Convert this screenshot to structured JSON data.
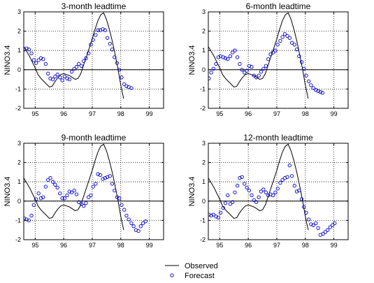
{
  "colors": {
    "observed": "#000000",
    "forecast": "#0000cc",
    "grid": "#000000",
    "zero": "#000000"
  },
  "legend": {
    "observed_label": "Observed",
    "forecast_label": "Forecast",
    "position": "bottom-center"
  },
  "chart_data": [
    {
      "type": "line",
      "title": "3-month leadtime",
      "xlabel": "",
      "ylabel": "NINO3.4",
      "xlim": [
        94.6,
        99.5
      ],
      "ylim": [
        -2,
        3
      ],
      "xticks": [
        95,
        96,
        97,
        98,
        99
      ],
      "yticks": [
        -2,
        -1,
        0,
        1,
        2,
        3
      ],
      "grid": "dotted",
      "series": [
        {
          "name": "Observed",
          "style": "line",
          "x": [
            94.6,
            94.7,
            94.8,
            94.9,
            95.0,
            95.1,
            95.2,
            95.3,
            95.4,
            95.5,
            95.6,
            95.7,
            95.8,
            95.9,
            96.0,
            96.1,
            96.2,
            96.3,
            96.4,
            96.5,
            96.6,
            96.7,
            96.8,
            96.9,
            97.0,
            97.1,
            97.2,
            97.3,
            97.4,
            97.5,
            97.6,
            97.7,
            97.8,
            97.9,
            98.0,
            98.1
          ],
          "y": [
            1.2,
            0.95,
            0.7,
            0.4,
            0.1,
            -0.25,
            -0.45,
            -0.6,
            -0.75,
            -0.9,
            -0.85,
            -0.6,
            -0.4,
            -0.25,
            -0.2,
            -0.25,
            -0.3,
            -0.4,
            -0.5,
            -0.45,
            -0.2,
            0.25,
            0.7,
            1.15,
            1.6,
            2.1,
            2.55,
            2.85,
            2.95,
            2.6,
            2.1,
            1.5,
            0.8,
            0.05,
            -0.8,
            -1.5
          ]
        },
        {
          "name": "Forecast",
          "style": "markers",
          "x": [
            94.62,
            94.7,
            94.78,
            94.87,
            94.95,
            95.03,
            95.12,
            95.2,
            95.28,
            95.37,
            95.45,
            95.53,
            95.62,
            95.7,
            95.78,
            95.87,
            95.95,
            96.03,
            96.12,
            96.2,
            96.28,
            96.37,
            96.45,
            96.53,
            96.62,
            96.7,
            96.78,
            96.87,
            96.95,
            97.03,
            97.12,
            97.2,
            97.28,
            97.37,
            97.45,
            97.53,
            97.62,
            97.7,
            97.78,
            97.87,
            97.95,
            98.03,
            98.12,
            98.2,
            98.28,
            98.37
          ],
          "y": [
            1.05,
            1.1,
            1.05,
            0.85,
            0.5,
            0.35,
            0.5,
            0.6,
            0.55,
            0.3,
            -0.2,
            -0.45,
            -0.5,
            -0.35,
            -0.25,
            -0.4,
            -0.55,
            -0.35,
            -0.45,
            -0.5,
            -0.1,
            0.05,
            0.15,
            0.3,
            0.2,
            0.45,
            0.6,
            0.85,
            1.3,
            1.55,
            1.8,
            2.05,
            2.05,
            2.1,
            2.05,
            1.65,
            1.35,
            1.05,
            0.65,
            0.35,
            0.0,
            -0.4,
            -0.75,
            -0.85,
            -0.9,
            -0.95
          ]
        }
      ]
    },
    {
      "type": "line",
      "title": "6-month leadtime",
      "xlabel": "",
      "ylabel": "NINO3.4",
      "xlim": [
        94.6,
        99.5
      ],
      "ylim": [
        -2,
        3
      ],
      "xticks": [
        95,
        96,
        97,
        98,
        99
      ],
      "yticks": [
        -2,
        -1,
        0,
        1,
        2,
        3
      ],
      "grid": "dotted",
      "series": [
        {
          "name": "Observed",
          "style": "line",
          "x": [
            94.6,
            94.7,
            94.8,
            94.9,
            95.0,
            95.1,
            95.2,
            95.3,
            95.4,
            95.5,
            95.6,
            95.7,
            95.8,
            95.9,
            96.0,
            96.1,
            96.2,
            96.3,
            96.4,
            96.5,
            96.6,
            96.7,
            96.8,
            96.9,
            97.0,
            97.1,
            97.2,
            97.3,
            97.4,
            97.5,
            97.6,
            97.7,
            97.8,
            97.9,
            98.0,
            98.1
          ],
          "y": [
            1.2,
            0.95,
            0.7,
            0.4,
            0.1,
            -0.25,
            -0.45,
            -0.6,
            -0.75,
            -0.9,
            -0.85,
            -0.6,
            -0.4,
            -0.25,
            -0.2,
            -0.25,
            -0.3,
            -0.4,
            -0.5,
            -0.45,
            -0.2,
            0.25,
            0.7,
            1.15,
            1.6,
            2.1,
            2.55,
            2.85,
            2.95,
            2.6,
            2.1,
            1.5,
            0.8,
            0.05,
            -0.8,
            -1.5
          ]
        },
        {
          "name": "Forecast",
          "style": "markers",
          "x": [
            94.62,
            94.7,
            94.78,
            94.87,
            94.95,
            95.03,
            95.12,
            95.2,
            95.28,
            95.37,
            95.45,
            95.53,
            95.62,
            95.7,
            95.78,
            95.87,
            95.95,
            96.03,
            96.12,
            96.2,
            96.28,
            96.37,
            96.45,
            96.53,
            96.62,
            96.7,
            96.78,
            96.87,
            96.95,
            97.03,
            97.12,
            97.2,
            97.28,
            97.37,
            97.45,
            97.53,
            97.62,
            97.7,
            97.78,
            97.87,
            97.95,
            98.03,
            98.12,
            98.2,
            98.28,
            98.37,
            98.45,
            98.53,
            98.6
          ],
          "y": [
            -0.45,
            -0.15,
            0.05,
            0.3,
            0.65,
            0.7,
            0.65,
            0.6,
            0.55,
            0.7,
            0.9,
            1.0,
            0.65,
            0.3,
            0.0,
            -0.15,
            -0.05,
            0.2,
            0.15,
            -0.3,
            -0.4,
            -0.3,
            -0.1,
            0.05,
            0.2,
            0.55,
            0.8,
            0.9,
            1.0,
            1.3,
            1.5,
            1.7,
            1.85,
            1.75,
            1.65,
            1.4,
            1.3,
            1.05,
            0.7,
            0.4,
            0.05,
            -0.3,
            -0.6,
            -0.8,
            -0.95,
            -1.05,
            -1.1,
            -1.15,
            -1.2
          ]
        }
      ]
    },
    {
      "type": "line",
      "title": "9-month leadtime",
      "xlabel": "",
      "ylabel": "NINO3.4",
      "xlim": [
        94.6,
        99.5
      ],
      "ylim": [
        -2,
        3
      ],
      "xticks": [
        95,
        96,
        97,
        98,
        99
      ],
      "yticks": [
        -2,
        -1,
        0,
        1,
        2,
        3
      ],
      "grid": "dotted",
      "series": [
        {
          "name": "Observed",
          "style": "line",
          "x": [
            94.6,
            94.7,
            94.8,
            94.9,
            95.0,
            95.1,
            95.2,
            95.3,
            95.4,
            95.5,
            95.6,
            95.7,
            95.8,
            95.9,
            96.0,
            96.1,
            96.2,
            96.3,
            96.4,
            96.5,
            96.6,
            96.7,
            96.8,
            96.9,
            97.0,
            97.1,
            97.2,
            97.3,
            97.4,
            97.5,
            97.6,
            97.7,
            97.8,
            97.9,
            98.0,
            98.1
          ],
          "y": [
            1.2,
            0.95,
            0.7,
            0.4,
            0.1,
            -0.25,
            -0.45,
            -0.6,
            -0.75,
            -0.9,
            -0.85,
            -0.6,
            -0.4,
            -0.25,
            -0.2,
            -0.25,
            -0.3,
            -0.4,
            -0.5,
            -0.45,
            -0.2,
            0.25,
            0.7,
            1.15,
            1.6,
            2.1,
            2.55,
            2.85,
            2.95,
            2.6,
            2.1,
            1.5,
            0.8,
            0.05,
            -0.8,
            -1.5
          ]
        },
        {
          "name": "Forecast",
          "style": "markers",
          "x": [
            94.62,
            94.7,
            94.78,
            94.87,
            94.95,
            95.03,
            95.12,
            95.2,
            95.28,
            95.37,
            95.45,
            95.53,
            95.62,
            95.7,
            95.78,
            95.87,
            95.95,
            96.03,
            96.12,
            96.2,
            96.28,
            96.37,
            96.45,
            96.53,
            96.62,
            96.7,
            96.78,
            96.87,
            96.95,
            97.03,
            97.12,
            97.2,
            97.28,
            97.37,
            97.45,
            97.53,
            97.62,
            97.7,
            97.78,
            97.87,
            97.95,
            98.03,
            98.12,
            98.2,
            98.28,
            98.37,
            98.45,
            98.53,
            98.62,
            98.7,
            98.78,
            98.87
          ],
          "y": [
            -0.9,
            -0.95,
            -1.0,
            -0.75,
            -0.2,
            0.1,
            0.4,
            0.15,
            0.2,
            0.75,
            1.1,
            1.2,
            1.0,
            0.85,
            0.7,
            0.4,
            0.15,
            0.15,
            0.3,
            0.5,
            0.45,
            0.55,
            0.35,
            -0.05,
            -0.15,
            -0.25,
            -0.1,
            0.2,
            0.3,
            0.75,
            0.9,
            1.4,
            1.35,
            1.15,
            1.2,
            1.25,
            1.3,
            0.9,
            0.55,
            0.2,
            0.15,
            -0.2,
            -0.45,
            -0.75,
            -0.95,
            -1.15,
            -1.3,
            -1.5,
            -1.55,
            -1.3,
            -1.15,
            -1.05
          ]
        }
      ]
    },
    {
      "type": "line",
      "title": "12-month leadtime",
      "xlabel": "",
      "ylabel": "NINO3.4",
      "xlim": [
        94.6,
        99.5
      ],
      "ylim": [
        -2,
        3
      ],
      "xticks": [
        95,
        96,
        97,
        98,
        99
      ],
      "yticks": [
        -2,
        -1,
        0,
        1,
        2,
        3
      ],
      "grid": "dotted",
      "series": [
        {
          "name": "Observed",
          "style": "line",
          "x": [
            94.6,
            94.7,
            94.8,
            94.9,
            95.0,
            95.1,
            95.2,
            95.3,
            95.4,
            95.5,
            95.6,
            95.7,
            95.8,
            95.9,
            96.0,
            96.1,
            96.2,
            96.3,
            96.4,
            96.5,
            96.6,
            96.7,
            96.8,
            96.9,
            97.0,
            97.1,
            97.2,
            97.3,
            97.4,
            97.5,
            97.6,
            97.7,
            97.8,
            97.9,
            98.0,
            98.1
          ],
          "y": [
            1.2,
            0.95,
            0.7,
            0.4,
            0.1,
            -0.25,
            -0.45,
            -0.6,
            -0.75,
            -0.9,
            -0.85,
            -0.6,
            -0.4,
            -0.25,
            -0.2,
            -0.25,
            -0.3,
            -0.4,
            -0.5,
            -0.45,
            -0.2,
            0.25,
            0.7,
            1.15,
            1.6,
            2.1,
            2.55,
            2.85,
            2.95,
            2.6,
            2.1,
            1.5,
            0.8,
            0.05,
            -0.8,
            -1.5
          ]
        },
        {
          "name": "Forecast",
          "style": "markers",
          "x": [
            94.62,
            94.7,
            94.78,
            94.87,
            94.95,
            95.03,
            95.12,
            95.2,
            95.28,
            95.37,
            95.45,
            95.53,
            95.62,
            95.7,
            95.78,
            95.87,
            95.95,
            96.03,
            96.12,
            96.2,
            96.28,
            96.37,
            96.45,
            96.53,
            96.62,
            96.7,
            96.78,
            96.87,
            96.95,
            97.03,
            97.12,
            97.2,
            97.28,
            97.37,
            97.45,
            97.53,
            97.62,
            97.7,
            97.78,
            97.87,
            97.95,
            98.03,
            98.12,
            98.2,
            98.28,
            98.37,
            98.45,
            98.53,
            98.62,
            98.7,
            98.78,
            98.87,
            98.95,
            99.03
          ],
          "y": [
            -0.7,
            -0.75,
            -0.7,
            -0.8,
            -0.85,
            -0.6,
            -0.35,
            -0.1,
            0.3,
            -0.15,
            -0.05,
            0.45,
            0.8,
            1.2,
            1.25,
            0.9,
            0.7,
            0.55,
            0.3,
            0.05,
            -0.05,
            0.2,
            0.5,
            0.6,
            0.45,
            0.3,
            0.35,
            0.3,
            0.45,
            0.65,
            0.95,
            1.1,
            1.2,
            1.25,
            1.85,
            1.3,
            0.8,
            0.5,
            0.55,
            0.1,
            -0.3,
            -0.6,
            -0.95,
            -1.2,
            -1.25,
            -1.15,
            -1.4,
            -1.75,
            -1.7,
            -1.6,
            -1.5,
            -1.35,
            -1.25,
            -1.15
          ]
        }
      ]
    }
  ]
}
